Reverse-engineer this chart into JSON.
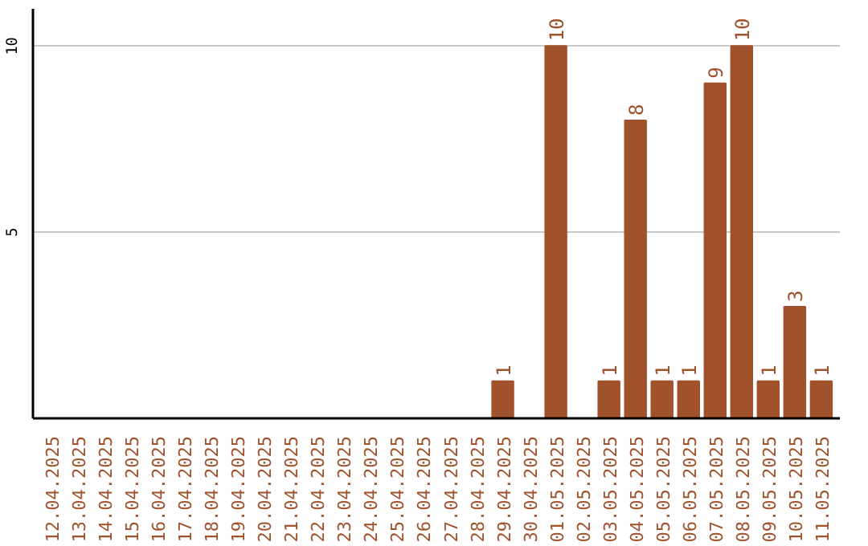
{
  "chart_data": {
    "type": "bar",
    "categories": [
      "12.04.2025",
      "13.04.2025",
      "14.04.2025",
      "15.04.2025",
      "16.04.2025",
      "17.04.2025",
      "18.04.2025",
      "19.04.2025",
      "20.04.2025",
      "21.04.2025",
      "22.04.2025",
      "23.04.2025",
      "24.04.2025",
      "25.04.2025",
      "26.04.2025",
      "27.04.2025",
      "28.04.2025",
      "29.04.2025",
      "30.04.2025",
      "01.05.2025",
      "02.05.2025",
      "03.05.2025",
      "04.05.2025",
      "05.05.2025",
      "06.05.2025",
      "07.05.2025",
      "08.05.2025",
      "09.05.2025",
      "10.05.2025",
      "11.05.2025"
    ],
    "values": [
      null,
      null,
      null,
      null,
      null,
      null,
      null,
      null,
      null,
      null,
      null,
      null,
      null,
      null,
      null,
      null,
      null,
      1,
      null,
      10,
      null,
      1,
      8,
      1,
      1,
      9,
      10,
      1,
      3,
      1
    ],
    "color": "#a0522d",
    "ylim": [
      0,
      11
    ],
    "yticks": [
      5,
      10
    ],
    "grid": "y",
    "data_labels": true
  }
}
